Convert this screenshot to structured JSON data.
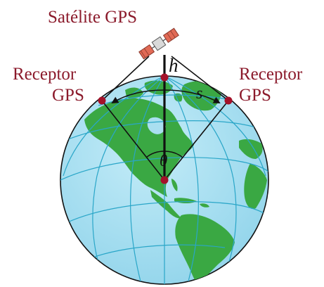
{
  "labels": {
    "satellite": "Satélite GPS",
    "receiver_left_line1": "Receptor",
    "receiver_left_line2": "GPS",
    "receiver_right_line1": "Receptor",
    "receiver_right_line2": "GPS"
  },
  "symbols": {
    "height": "h",
    "arc_length": "s",
    "angle": "θ"
  },
  "colors": {
    "ocean": "#a9dff0",
    "land": "#3aa843",
    "grid_lines": "#2aa6c8",
    "markers": "#a4122a",
    "label_text": "#8b1a2b"
  },
  "icons": [
    "satellite-icon",
    "receiver-marker",
    "earth-globe"
  ]
}
